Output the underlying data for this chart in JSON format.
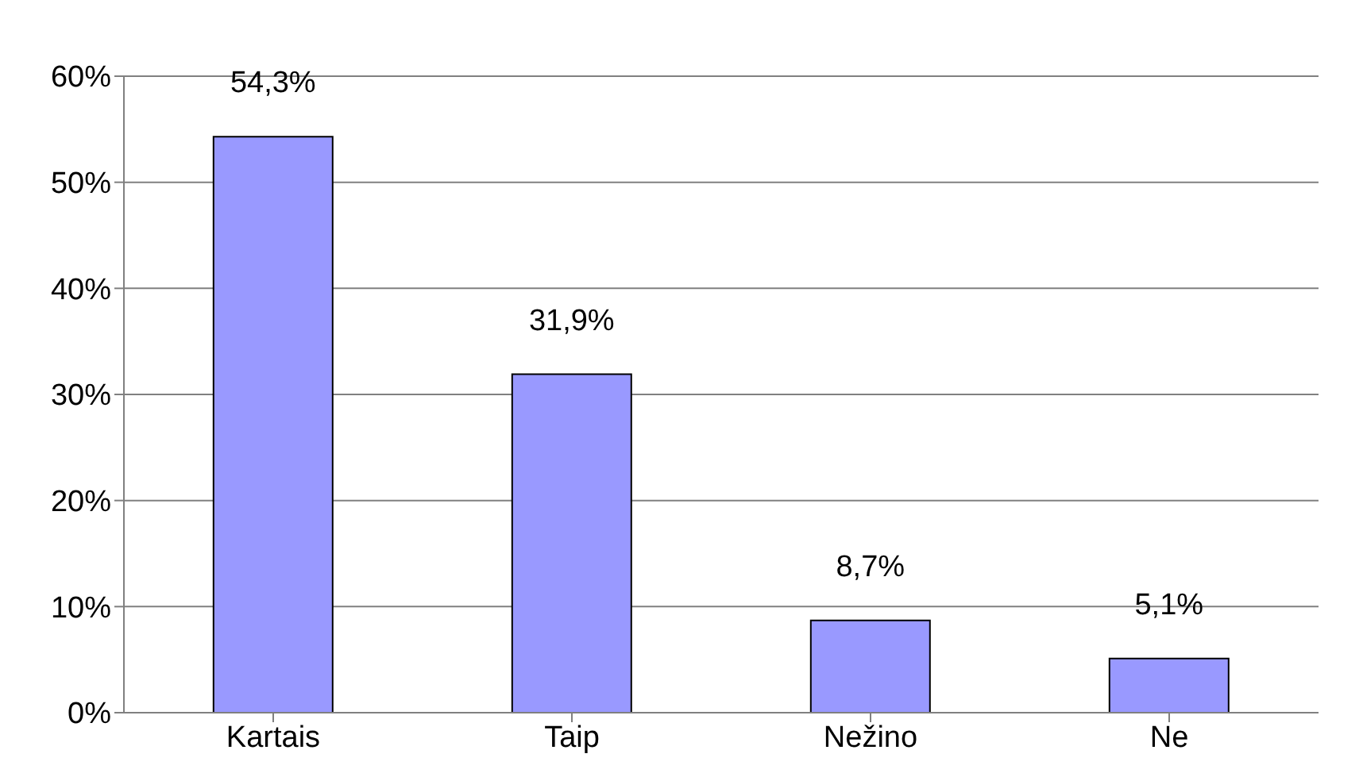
{
  "chart_data": {
    "type": "bar",
    "categories": [
      "Kartais",
      "Taip",
      "Nežino",
      "Ne"
    ],
    "values": [
      54.3,
      31.9,
      8.7,
      5.1
    ],
    "value_labels": [
      "54,3%",
      "31,9%",
      "8,7%",
      "5,1%"
    ],
    "color": "#9999ff",
    "ylim": [
      0,
      60
    ],
    "yticks": [
      {
        "value": 0,
        "label": "0%"
      },
      {
        "value": 10,
        "label": "10%"
      },
      {
        "value": 20,
        "label": "20%"
      },
      {
        "value": 30,
        "label": "30%"
      },
      {
        "value": 40,
        "label": "40%"
      },
      {
        "value": 50,
        "label": "50%"
      },
      {
        "value": 60,
        "label": "60%"
      }
    ],
    "grid": "y"
  }
}
